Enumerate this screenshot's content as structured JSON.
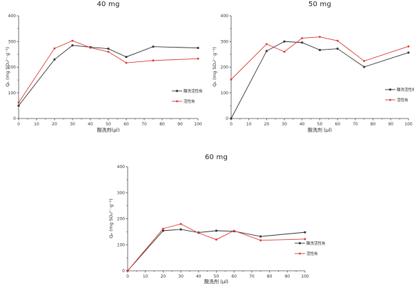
{
  "figure": {
    "background": "#ffffff",
    "axis_color": "#4a4a4a",
    "tick_label_color": "#333333",
    "title_color": "#1a1a1a"
  },
  "legend": {
    "series1_label": "酸洗活性炭",
    "series2_label": "活性炭"
  },
  "chart_data": [
    {
      "type": "line",
      "title": "40 mg",
      "xlabel": "酸洗剂(μl)",
      "ylabel": "Qₑ (mg SO₄²⁻·g⁻¹)",
      "xlim": [
        0,
        100
      ],
      "ylim": [
        0,
        400
      ],
      "xticks": [
        0,
        10,
        20,
        30,
        40,
        50,
        60,
        70,
        80,
        90,
        100
      ],
      "yticks": [
        0,
        100,
        200,
        300,
        400
      ],
      "grid": false,
      "legend_position": "inside-right",
      "x": [
        0,
        20,
        30,
        40,
        50,
        60,
        75,
        100
      ],
      "series": [
        {
          "name": "酸洗活性炭",
          "color": "#2d2d2d",
          "marker": "square",
          "values": [
            50,
            230,
            285,
            278,
            272,
            240,
            280,
            275
          ]
        },
        {
          "name": "活性炭",
          "color": "#d9342b",
          "marker": "circle",
          "values": [
            62,
            273,
            303,
            276,
            260,
            217,
            226,
            233
          ]
        }
      ]
    },
    {
      "type": "line",
      "title": "50 mg",
      "xlabel": "酸洗剂 (μl)",
      "ylabel": "Qₑ (mg SO₄²⁻·g⁻¹)",
      "xlim": [
        0,
        100
      ],
      "ylim": [
        0,
        400
      ],
      "xticks": [
        0,
        10,
        20,
        30,
        40,
        50,
        60,
        70,
        80,
        90,
        100
      ],
      "yticks": [
        0,
        100,
        200,
        300,
        400
      ],
      "grid": false,
      "legend_position": "inside-right",
      "x": [
        0,
        20,
        30,
        40,
        50,
        60,
        75,
        100
      ],
      "series": [
        {
          "name": "酸洗活性炭",
          "color": "#2d2d2d",
          "marker": "square",
          "values": [
            0,
            263,
            300,
            296,
            267,
            272,
            201,
            257
          ]
        },
        {
          "name": "活性炭",
          "color": "#d9342b",
          "marker": "circle",
          "values": [
            152,
            290,
            260,
            313,
            318,
            303,
            224,
            281
          ]
        }
      ]
    },
    {
      "type": "line",
      "title": "60 mg",
      "xlabel": "酸洗剂 (μl)",
      "ylabel": "Qₑ (mg SO₄²⁻·g⁻¹)",
      "xlim": [
        0,
        100
      ],
      "ylim": [
        0,
        400
      ],
      "xticks": [
        0,
        10,
        20,
        30,
        40,
        50,
        60,
        70,
        80,
        90,
        100
      ],
      "yticks": [
        0,
        100,
        200,
        300,
        400
      ],
      "grid": false,
      "legend_position": "inside-right",
      "x": [
        0,
        20,
        30,
        40,
        50,
        60,
        75,
        100
      ],
      "series": [
        {
          "name": "酸洗活性炭",
          "color": "#2d2d2d",
          "marker": "square",
          "values": [
            0,
            154,
            159,
            147,
            154,
            152,
            132,
            148
          ]
        },
        {
          "name": "活性炭",
          "color": "#d9342b",
          "marker": "circle",
          "values": [
            0,
            162,
            180,
            145,
            120,
            154,
            117,
            122
          ]
        }
      ]
    }
  ]
}
